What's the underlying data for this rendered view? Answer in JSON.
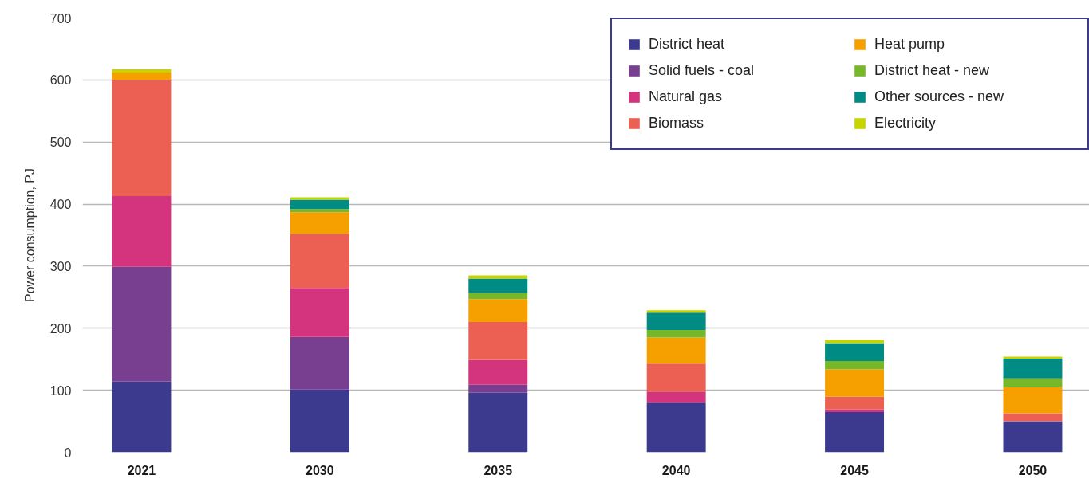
{
  "chart_data": {
    "type": "bar",
    "stacked": true,
    "ylabel": "Power consumption, PJ",
    "categories": [
      "2021",
      "2030",
      "2035",
      "2040",
      "2045",
      "2050"
    ],
    "series": [
      {
        "name": "District heat",
        "color": "#3b3a8f",
        "values": [
          114,
          101,
          96,
          80,
          65,
          50
        ]
      },
      {
        "name": "Solid fuels - coal",
        "color": "#783e8f",
        "values": [
          185,
          85,
          13,
          0,
          0,
          0
        ]
      },
      {
        "name": "Natural gas",
        "color": "#d4337e",
        "values": [
          114,
          79,
          40,
          18,
          4,
          0
        ]
      },
      {
        "name": "Biomass",
        "color": "#ec5f53",
        "values": [
          187,
          87,
          61,
          45,
          21,
          13
        ]
      },
      {
        "name": "Heat pump",
        "color": "#f6a000",
        "values": [
          12,
          35,
          37,
          42,
          44,
          42
        ]
      },
      {
        "name": "District heat - new",
        "color": "#76b82a",
        "values": [
          0,
          5,
          10,
          12,
          13,
          14
        ]
      },
      {
        "name": "Other sources - new",
        "color": "#008b84",
        "values": [
          0,
          15,
          23,
          28,
          29,
          32
        ]
      },
      {
        "name": "Electricity",
        "color": "#c8d400",
        "values": [
          5,
          4,
          5,
          4,
          5,
          3
        ]
      }
    ],
    "ylim": [
      0,
      700
    ],
    "yticks": [
      0,
      100,
      200,
      300,
      400,
      500,
      600,
      700
    ],
    "grid": "y",
    "legend": "top right"
  }
}
